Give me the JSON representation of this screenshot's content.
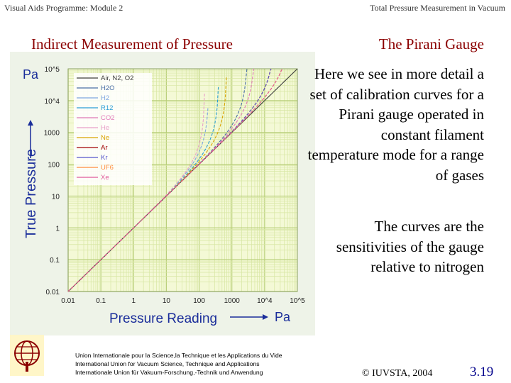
{
  "header": {
    "left": "Visual Aids Programme: Module 2",
    "right": "Total Pressure Measurement in Vacuum"
  },
  "slide": {
    "title_left": "Indirect Measurement of Pressure",
    "title_right": "The Pirani Gauge",
    "paragraph1": "Here we see in more detail a set of calibration curves for a Pirani gauge operated in constant filament temperature mode for a range of gases",
    "paragraph2": "The curves are the sensitivities of the gauge relative to nitrogen"
  },
  "footer": {
    "union_lines": [
      "Union Internationale pour la Science,la Technique et les Applications du Vide",
      "International Union for Vacuum Science, Technique and Applications",
      "Internationale Union für Vakuum-Forschung,-Technik und Anwendung"
    ],
    "copyright": "© IUVSTA, 2004",
    "page_number": "3.19"
  },
  "chart_data": {
    "type": "line",
    "scale": "log-log",
    "ylabel_unit": "Pa",
    "ylabel": "True Pressure",
    "xlabel": "Pressure Reading",
    "xlabel_unit": "Pa",
    "y_ticks": [
      "10^5",
      "10^4",
      "1000",
      "100",
      "10",
      "1",
      "0.1",
      "0.01"
    ],
    "x_ticks": [
      "0.01",
      "0.1",
      "1",
      "10",
      "100",
      "1000",
      "10^4",
      "10^5"
    ],
    "xlim": [
      0.01,
      100000
    ],
    "ylim": [
      0.01,
      100000
    ],
    "grid": true,
    "legend_position": "top-left",
    "series": [
      {
        "name": "Air, N2, O2",
        "color": "#404040",
        "sat": 100000
      },
      {
        "name": "H2O",
        "color": "#4a6fa5",
        "sat": 3000
      },
      {
        "name": "H2",
        "color": "#7fa6e0",
        "sat": 200
      },
      {
        "name": "R12",
        "color": "#2a9dd6",
        "sat": 400
      },
      {
        "name": "CO2",
        "color": "#e07ab8",
        "sat": 5000
      },
      {
        "name": "He",
        "color": "#e8a0c8",
        "sat": 150
      },
      {
        "name": "Ne",
        "color": "#d9a300",
        "sat": 700
      },
      {
        "name": "Ar",
        "color": "#a00000",
        "sat": 20000
      },
      {
        "name": "Kr",
        "color": "#5555cc",
        "sat": 20000
      },
      {
        "name": "UF6",
        "color": "#ff8c3a",
        "sat": 60000
      },
      {
        "name": "Xe",
        "color": "#e05a9a",
        "sat": 60000
      }
    ]
  }
}
